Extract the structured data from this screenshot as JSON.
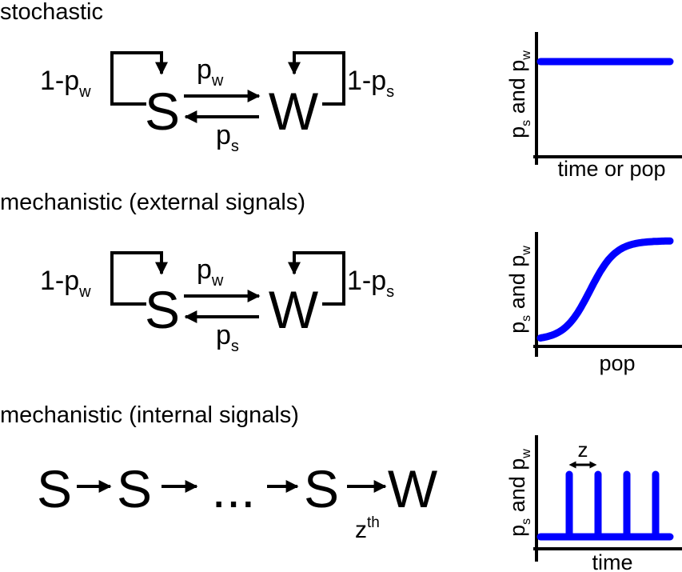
{
  "colors": {
    "curve": "#0000ff",
    "ink": "#000000"
  },
  "rows": [
    {
      "title": "stochastic",
      "state_a": "S",
      "state_b": "W",
      "self_a": {
        "base": "1-p",
        "sub": "w"
      },
      "self_b": {
        "base": "1-p",
        "sub": "s"
      },
      "fwd": {
        "base": "p",
        "sub": "w"
      },
      "back": {
        "base": "p",
        "sub": "s"
      },
      "plot": {
        "ylabel": {
          "a": "p",
          "a_sub": "s",
          "mid": " and ",
          "b": "p",
          "b_sub": "w"
        },
        "xlabel": "time or pop",
        "curve_type": "constant"
      }
    },
    {
      "title": "mechanistic (external signals)",
      "state_a": "S",
      "state_b": "W",
      "self_a": {
        "base": "1-p",
        "sub": "w"
      },
      "self_b": {
        "base": "1-p",
        "sub": "s"
      },
      "fwd": {
        "base": "p",
        "sub": "w"
      },
      "back": {
        "base": "p",
        "sub": "s"
      },
      "plot": {
        "ylabel": {
          "a": "p",
          "a_sub": "s",
          "mid": " and ",
          "b": "p",
          "b_sub": "w"
        },
        "xlabel": "pop",
        "curve_type": "sigmoid"
      }
    },
    {
      "title": "mechanistic (internal signals)",
      "chain": [
        "S",
        "S",
        "...",
        "S",
        "W"
      ],
      "last_step": {
        "base": "z",
        "sup": "th"
      },
      "plot": {
        "ylabel": {
          "a": "p",
          "a_sub": "s",
          "mid": " and ",
          "b": "p",
          "b_sub": "w"
        },
        "xlabel": "time",
        "curve_type": "spikes",
        "interval_label": "z",
        "spike_count": 4
      }
    }
  ]
}
